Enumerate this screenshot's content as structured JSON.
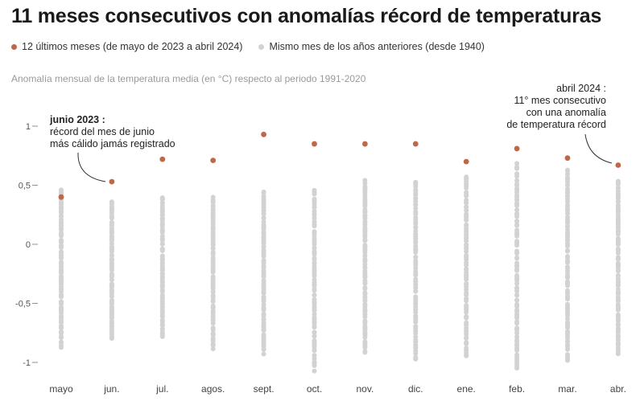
{
  "title": "11 meses consecutivos con anomalías récord de temperaturas",
  "legend": {
    "recent_label": "12 últimos meses (de mayo de 2023 a abril 2024)",
    "past_label": "Mismo mes de los años anteriores (desde 1940)",
    "recent_color": "#c0674a",
    "past_color": "#d2d2d2"
  },
  "subtitle": "Anomalía mensual de la temperatura media (en °C) respecto al periodo 1991-2020",
  "annotations": {
    "june": {
      "title": "junio 2023 :",
      "line1": "récord del mes de junio",
      "line2": "más cálido jamás registrado"
    },
    "april": {
      "line1": "abril 2024 :",
      "line2": "11° mes consecutivo",
      "line3": "con una anomalía",
      "line4": "de temperatura récord"
    }
  },
  "chart_data": {
    "type": "scatter",
    "title": "11 meses consecutivos con anomalías récord de temperaturas",
    "ylabel": "Anomalía mensual de la temperatura media (en °C) respecto al periodo 1991-2020",
    "xlabel": "",
    "categories": [
      "mayo",
      "jun.",
      "jul.",
      "agos.",
      "sept.",
      "oct.",
      "nov.",
      "dic.",
      "ene.",
      "feb.",
      "mar.",
      "abr."
    ],
    "y_ticks": [
      1,
      0.5,
      0,
      -0.5,
      -1
    ],
    "y_tick_labels": [
      "1",
      "0,5",
      "0",
      "-0,5",
      "-1"
    ],
    "ylim": [
      -1.1,
      1.05
    ],
    "grid": false,
    "legend_position": "top",
    "series": [
      {
        "name": "12 últimos meses (de mayo de 2023 a abril 2024)",
        "values": [
          0.4,
          0.53,
          0.72,
          0.71,
          0.93,
          0.85,
          0.85,
          0.85,
          0.7,
          0.81,
          0.73,
          0.67
        ]
      },
      {
        "name": "Mismo mes de los años anteriores (desde 1940)",
        "ranges": [
          [
            -0.88,
            0.47
          ],
          [
            -0.8,
            0.37
          ],
          [
            -0.78,
            0.4
          ],
          [
            -0.88,
            0.4
          ],
          [
            -0.92,
            0.44
          ],
          [
            -1.06,
            0.45
          ],
          [
            -0.92,
            0.53
          ],
          [
            -0.98,
            0.54
          ],
          [
            -0.95,
            0.58
          ],
          [
            -1.05,
            0.69
          ],
          [
            -0.98,
            0.63
          ],
          [
            -0.92,
            0.53
          ]
        ],
        "count_per_month": 84
      }
    ]
  }
}
